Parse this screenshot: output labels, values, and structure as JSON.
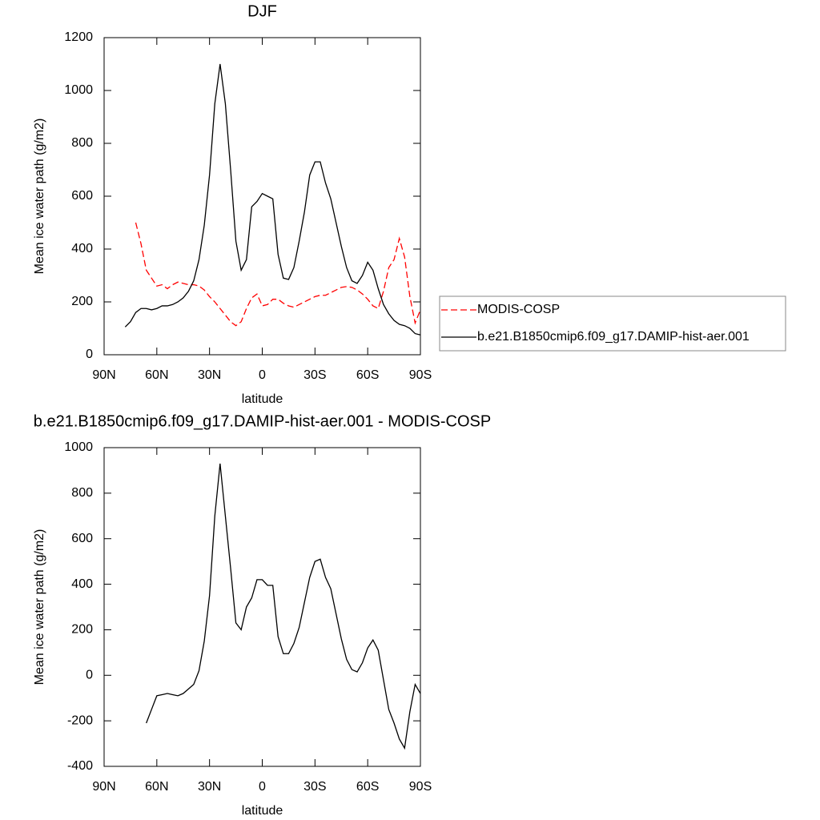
{
  "chart_data": [
    {
      "type": "line",
      "title": "DJF",
      "xlabel": "latitude",
      "ylabel": "Mean ice water path (g/m2)",
      "x": [
        78,
        75,
        72,
        69,
        66,
        63,
        60,
        57,
        54,
        51,
        48,
        45,
        42,
        39,
        36,
        33,
        30,
        27,
        24,
        21,
        18,
        15,
        12,
        9,
        6,
        3,
        0,
        -3,
        -6,
        -9,
        -12,
        -15,
        -18,
        -21,
        -24,
        -27,
        -30,
        -33,
        -36,
        -39,
        -42,
        -45,
        -48,
        -51,
        -54,
        -57,
        -60,
        -63,
        -66,
        -69,
        -72,
        -75,
        -78,
        -81,
        -84,
        -87,
        -90
      ],
      "series": [
        {
          "name": "MODIS-COSP",
          "color": "#ff0000",
          "line_style": "dashed",
          "values": [
            null,
            null,
            500,
            420,
            320,
            290,
            260,
            265,
            250,
            265,
            275,
            270,
            265,
            265,
            260,
            245,
            220,
            200,
            175,
            150,
            125,
            110,
            125,
            175,
            215,
            230,
            185,
            190,
            210,
            210,
            195,
            185,
            180,
            190,
            200,
            210,
            220,
            225,
            225,
            235,
            245,
            255,
            258,
            255,
            245,
            230,
            210,
            185,
            175,
            240,
            330,
            360,
            440,
            370,
            220,
            120,
            170
          ]
        },
        {
          "name": "b.e21.B1850cmip6.f09_g17.DAMIP-hist-aer.001",
          "color": "#000000",
          "line_style": "solid",
          "values": [
            105,
            125,
            160,
            175,
            175,
            170,
            175,
            185,
            185,
            190,
            200,
            215,
            240,
            280,
            360,
            490,
            680,
            950,
            1100,
            950,
            700,
            430,
            320,
            360,
            560,
            580,
            610,
            600,
            590,
            380,
            290,
            285,
            330,
            430,
            540,
            680,
            730,
            730,
            650,
            590,
            500,
            410,
            330,
            280,
            270,
            300,
            350,
            320,
            250,
            190,
            155,
            130,
            115,
            110,
            100,
            80,
            75
          ]
        }
      ],
      "xlim": [
        90,
        -90
      ],
      "xticks": [
        {
          "value": 90,
          "label": "90N"
        },
        {
          "value": 60,
          "label": "60N"
        },
        {
          "value": 30,
          "label": "30N"
        },
        0,
        {
          "value": -30,
          "label": "30S"
        },
        {
          "value": -60,
          "label": "60S"
        },
        {
          "value": -90,
          "label": "90S"
        }
      ],
      "ylim": [
        0,
        1200
      ],
      "yticks": [
        0,
        200,
        400,
        600,
        800,
        1000,
        1200
      ],
      "legend": "right"
    },
    {
      "type": "line",
      "title": "b.e21.B1850cmip6.f09_g17.DAMIP-hist-aer.001 - MODIS-COSP",
      "xlabel": "latitude",
      "ylabel": "Mean ice water path (g/m2)",
      "x": [
        78,
        75,
        72,
        69,
        66,
        63,
        60,
        57,
        54,
        51,
        48,
        45,
        42,
        39,
        36,
        33,
        30,
        27,
        24,
        21,
        18,
        15,
        12,
        9,
        6,
        3,
        0,
        -3,
        -6,
        -9,
        -12,
        -15,
        -18,
        -21,
        -24,
        -27,
        -30,
        -33,
        -36,
        -39,
        -42,
        -45,
        -48,
        -51,
        -54,
        -57,
        -60,
        -63,
        -66,
        -69,
        -72,
        -75,
        -78,
        -81,
        -84,
        -87,
        -90
      ],
      "series": [
        {
          "color": "#000000",
          "line_style": "solid",
          "values": [
            null,
            null,
            null,
            null,
            -210,
            -150,
            -90,
            -85,
            -80,
            -85,
            -90,
            -80,
            -60,
            -40,
            20,
            150,
            350,
            700,
            930,
            700,
            470,
            230,
            200,
            300,
            340,
            420,
            420,
            395,
            395,
            170,
            95,
            95,
            140,
            210,
            320,
            430,
            500,
            510,
            430,
            380,
            270,
            160,
            70,
            25,
            15,
            55,
            120,
            155,
            110,
            -20,
            -150,
            -210,
            -280,
            -320,
            -160,
            -40,
            -80
          ]
        }
      ],
      "xlim": [
        90,
        -90
      ],
      "xticks": [
        {
          "value": 90,
          "label": "90N"
        },
        {
          "value": 60,
          "label": "60N"
        },
        {
          "value": 30,
          "label": "30N"
        },
        0,
        {
          "value": -30,
          "label": "30S"
        },
        {
          "value": -60,
          "label": "60S"
        },
        {
          "value": -90,
          "label": "90S"
        }
      ],
      "ylim": [
        -400,
        1000
      ],
      "yticks": [
        -400,
        -200,
        0,
        200,
        400,
        600,
        800,
        1000
      ]
    }
  ]
}
